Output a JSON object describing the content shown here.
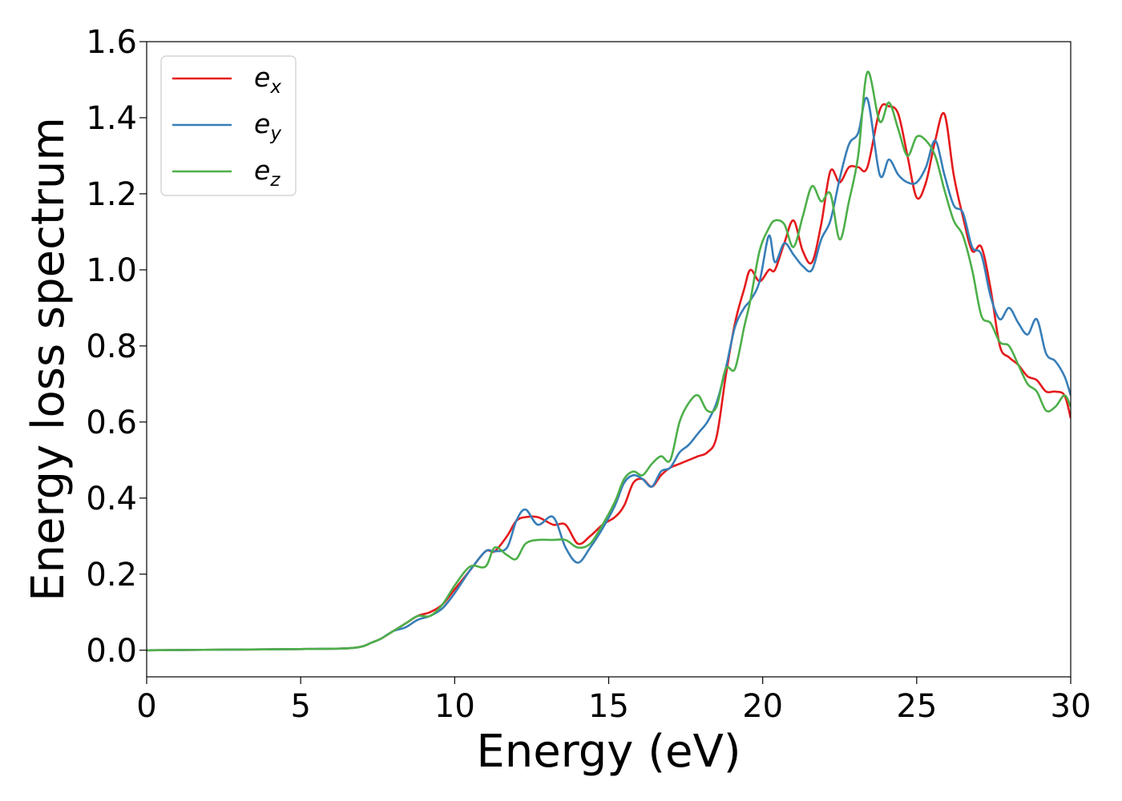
{
  "chart_data": {
    "type": "line",
    "title": "",
    "xlabel": "Energy (eV)",
    "ylabel": "Energy loss spectrum",
    "xlim": [
      0,
      30
    ],
    "ylim": [
      -0.07,
      1.6
    ],
    "xticks": [
      0,
      5,
      10,
      15,
      20,
      25,
      30
    ],
    "xtick_labels": [
      "0",
      "5",
      "10",
      "15",
      "20",
      "25",
      "30"
    ],
    "yticks": [
      0.0,
      0.2,
      0.4,
      0.6,
      0.8,
      1.0,
      1.2,
      1.4,
      1.6
    ],
    "ytick_labels": [
      "0.0",
      "0.2",
      "0.4",
      "0.6",
      "0.8",
      "1.0",
      "1.2",
      "1.4",
      "1.6"
    ],
    "grid": false,
    "legend_position": "top-left",
    "series": [
      {
        "name": "e",
        "subscript": "x",
        "color": "#e41a1c",
        "x": [
          0,
          5,
          6.5,
          7.0,
          7.3,
          7.6,
          8.0,
          8.4,
          8.8,
          9.2,
          9.6,
          10.0,
          10.5,
          11.0,
          11.3,
          11.7,
          12.0,
          12.3,
          12.7,
          13.2,
          13.6,
          14.0,
          14.4,
          14.8,
          15.2,
          15.5,
          15.8,
          16.1,
          16.4,
          16.7,
          17.0,
          17.3,
          17.6,
          17.9,
          18.2,
          18.5,
          18.8,
          19.1,
          19.4,
          19.6,
          19.9,
          20.2,
          20.4,
          20.7,
          21.0,
          21.3,
          21.6,
          21.9,
          22.2,
          22.5,
          22.8,
          23.1,
          23.4,
          23.8,
          24.1,
          24.4,
          24.7,
          25.0,
          25.3,
          25.6,
          25.9,
          26.2,
          26.5,
          26.8,
          27.1,
          27.4,
          27.7,
          28.0,
          28.3,
          28.6,
          28.9,
          29.2,
          29.5,
          29.8,
          30.0
        ],
        "values": [
          0.0,
          0.003,
          0.005,
          0.01,
          0.02,
          0.03,
          0.05,
          0.07,
          0.09,
          0.1,
          0.12,
          0.16,
          0.21,
          0.26,
          0.26,
          0.3,
          0.34,
          0.35,
          0.35,
          0.33,
          0.33,
          0.28,
          0.3,
          0.33,
          0.35,
          0.38,
          0.44,
          0.45,
          0.43,
          0.46,
          0.48,
          0.49,
          0.5,
          0.51,
          0.52,
          0.56,
          0.72,
          0.86,
          0.95,
          1.0,
          0.97,
          1.0,
          1.0,
          1.07,
          1.13,
          1.05,
          1.02,
          1.12,
          1.26,
          1.23,
          1.27,
          1.27,
          1.27,
          1.42,
          1.43,
          1.41,
          1.3,
          1.19,
          1.23,
          1.34,
          1.41,
          1.25,
          1.14,
          1.05,
          1.06,
          0.95,
          0.8,
          0.77,
          0.75,
          0.72,
          0.71,
          0.68,
          0.68,
          0.67,
          0.61
        ]
      },
      {
        "name": "e",
        "subscript": "y",
        "color": "#377eb8",
        "x": [
          0,
          5,
          6.5,
          7.0,
          7.3,
          7.6,
          8.0,
          8.4,
          8.8,
          9.2,
          9.6,
          10.0,
          10.5,
          11.0,
          11.3,
          11.7,
          12.0,
          12.3,
          12.7,
          13.2,
          13.6,
          14.0,
          14.4,
          14.8,
          15.2,
          15.5,
          15.8,
          16.1,
          16.4,
          16.7,
          17.0,
          17.3,
          17.6,
          17.9,
          18.2,
          18.5,
          18.8,
          19.1,
          19.4,
          19.6,
          19.9,
          20.2,
          20.4,
          20.7,
          21.0,
          21.3,
          21.6,
          21.9,
          22.2,
          22.5,
          22.8,
          23.1,
          23.4,
          23.8,
          24.1,
          24.4,
          24.7,
          25.0,
          25.3,
          25.6,
          25.9,
          26.2,
          26.5,
          26.8,
          27.1,
          27.4,
          27.7,
          28.0,
          28.3,
          28.6,
          28.9,
          29.2,
          29.5,
          29.8,
          30.0
        ],
        "values": [
          0.0,
          0.003,
          0.005,
          0.01,
          0.02,
          0.03,
          0.05,
          0.06,
          0.08,
          0.09,
          0.11,
          0.15,
          0.21,
          0.26,
          0.26,
          0.27,
          0.34,
          0.37,
          0.33,
          0.35,
          0.27,
          0.23,
          0.27,
          0.32,
          0.38,
          0.44,
          0.46,
          0.45,
          0.43,
          0.47,
          0.48,
          0.52,
          0.54,
          0.57,
          0.6,
          0.65,
          0.74,
          0.85,
          0.9,
          0.92,
          0.97,
          1.09,
          1.02,
          1.07,
          1.04,
          1.01,
          1.0,
          1.08,
          1.13,
          1.24,
          1.33,
          1.36,
          1.45,
          1.25,
          1.29,
          1.25,
          1.23,
          1.23,
          1.27,
          1.34,
          1.25,
          1.17,
          1.15,
          1.06,
          1.04,
          0.93,
          0.87,
          0.9,
          0.86,
          0.83,
          0.87,
          0.78,
          0.76,
          0.72,
          0.67
        ]
      },
      {
        "name": "e",
        "subscript": "z",
        "color": "#4daf4a",
        "x": [
          0,
          5,
          6.5,
          7.0,
          7.3,
          7.6,
          8.0,
          8.4,
          8.8,
          9.2,
          9.6,
          10.0,
          10.5,
          11.0,
          11.3,
          11.7,
          12.0,
          12.3,
          12.7,
          13.2,
          13.6,
          14.0,
          14.4,
          14.8,
          15.2,
          15.5,
          15.8,
          16.1,
          16.4,
          16.7,
          17.0,
          17.3,
          17.6,
          17.9,
          18.2,
          18.5,
          18.8,
          19.1,
          19.4,
          19.6,
          19.9,
          20.2,
          20.4,
          20.7,
          21.0,
          21.3,
          21.6,
          21.9,
          22.2,
          22.5,
          22.8,
          23.1,
          23.4,
          23.8,
          24.1,
          24.4,
          24.7,
          25.0,
          25.3,
          25.6,
          25.9,
          26.2,
          26.5,
          26.8,
          27.1,
          27.4,
          27.7,
          28.0,
          28.3,
          28.6,
          28.9,
          29.2,
          29.5,
          29.8,
          30.0
        ],
        "values": [
          0.0,
          0.003,
          0.005,
          0.01,
          0.02,
          0.03,
          0.05,
          0.07,
          0.09,
          0.09,
          0.12,
          0.17,
          0.22,
          0.22,
          0.27,
          0.25,
          0.24,
          0.28,
          0.29,
          0.29,
          0.29,
          0.27,
          0.28,
          0.33,
          0.39,
          0.45,
          0.47,
          0.46,
          0.49,
          0.51,
          0.5,
          0.6,
          0.65,
          0.67,
          0.63,
          0.64,
          0.74,
          0.74,
          0.85,
          0.92,
          1.05,
          1.11,
          1.13,
          1.12,
          1.06,
          1.14,
          1.22,
          1.18,
          1.2,
          1.08,
          1.18,
          1.3,
          1.52,
          1.39,
          1.44,
          1.37,
          1.3,
          1.35,
          1.34,
          1.3,
          1.21,
          1.13,
          1.09,
          1.0,
          0.88,
          0.86,
          0.81,
          0.8,
          0.75,
          0.7,
          0.68,
          0.63,
          0.64,
          0.67,
          0.64
        ]
      }
    ]
  }
}
